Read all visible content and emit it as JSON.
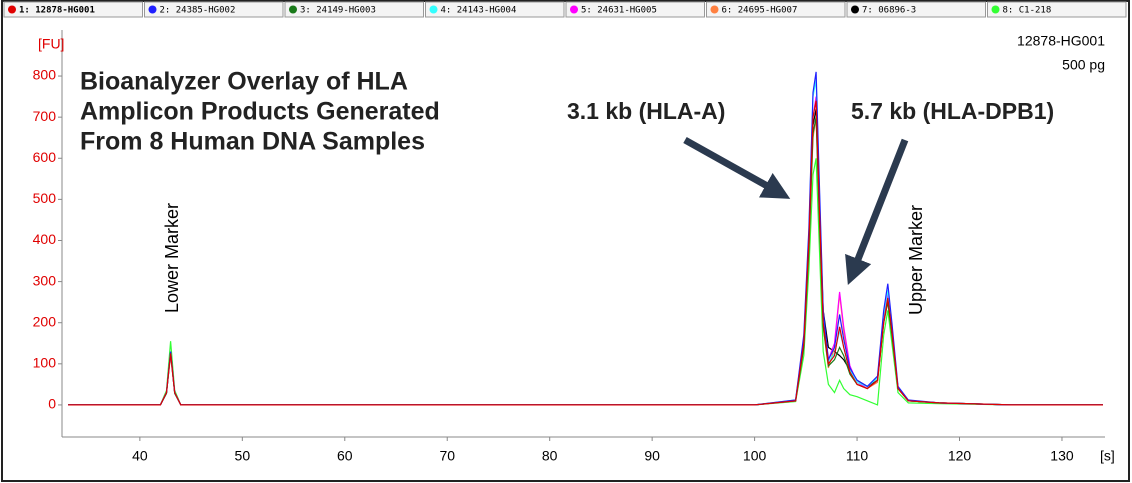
{
  "chart_data": {
    "type": "line",
    "title": [
      "Bioanalyzer Overlay of HLA",
      "Amplicon Products Generated",
      "From 8 Human DNA Samples"
    ],
    "sample_name": "12878-HG001",
    "sample_amount": "500 pg",
    "y_unit": "[FU]",
    "x_unit": "[s]",
    "annotations": [
      "3.1 kb (HLA-A)",
      "5.7 kb (HLA-DPB1)",
      "Lower Marker",
      "Upper Marker"
    ],
    "xlim": [
      32.4,
      134.2
    ],
    "ylim": [
      -78,
      912
    ],
    "xticks": [
      40,
      50,
      60,
      70,
      80,
      90,
      100,
      110,
      120,
      130
    ],
    "yticks": [
      0,
      100,
      200,
      300,
      400,
      500,
      600,
      700,
      800
    ],
    "x": [
      33,
      42,
      42.6,
      43,
      43.4,
      44,
      60,
      80,
      100,
      104,
      104.8,
      105.3,
      105.7,
      106,
      106.3,
      106.7,
      107.2,
      107.8,
      108.3,
      108.7,
      109.3,
      110,
      111,
      112,
      112.6,
      113,
      113.4,
      114,
      115,
      118,
      125,
      134
    ],
    "series": [
      {
        "name": "1: 12878-HG001",
        "color": "#e00000",
        "values": [
          0,
          0,
          30,
          125,
          30,
          0,
          0,
          0,
          0,
          10,
          150,
          400,
          700,
          740,
          500,
          200,
          100,
          120,
          190,
          140,
          80,
          50,
          40,
          60,
          200,
          260,
          180,
          40,
          10,
          5,
          0,
          0
        ]
      },
      {
        "name": "2: 24385-HG002",
        "color": "#1f1fff",
        "values": [
          0,
          0,
          30,
          130,
          30,
          0,
          0,
          0,
          0,
          12,
          170,
          430,
          760,
          810,
          560,
          230,
          110,
          140,
          220,
          160,
          90,
          60,
          45,
          70,
          230,
          295,
          200,
          45,
          12,
          5,
          0,
          0
        ]
      },
      {
        "name": "3: 24149-HG003",
        "color": "#1a7a1a",
        "values": [
          0,
          0,
          28,
          130,
          28,
          0,
          0,
          0,
          0,
          10,
          140,
          380,
          660,
          700,
          470,
          190,
          95,
          110,
          140,
          120,
          75,
          50,
          40,
          60,
          200,
          250,
          170,
          40,
          10,
          5,
          0,
          0
        ]
      },
      {
        "name": "4: 24143-HG004",
        "color": "#33ffff",
        "values": [
          0,
          0,
          30,
          125,
          30,
          0,
          0,
          0,
          0,
          12,
          160,
          420,
          750,
          790,
          540,
          220,
          105,
          125,
          180,
          140,
          85,
          55,
          45,
          65,
          220,
          280,
          190,
          42,
          10,
          5,
          0,
          0
        ]
      },
      {
        "name": "5: 24631-HG005",
        "color": "#ff00ff",
        "values": [
          0,
          0,
          30,
          125,
          30,
          0,
          0,
          0,
          0,
          10,
          150,
          400,
          700,
          750,
          510,
          210,
          110,
          150,
          275,
          190,
          95,
          55,
          40,
          60,
          210,
          270,
          180,
          40,
          10,
          5,
          0,
          0
        ]
      },
      {
        "name": "6: 24695-HG007",
        "color": "#ff8040",
        "values": [
          0,
          0,
          30,
          120,
          30,
          0,
          0,
          0,
          0,
          10,
          140,
          380,
          650,
          700,
          480,
          190,
          90,
          140,
          270,
          180,
          80,
          50,
          40,
          55,
          200,
          255,
          175,
          40,
          10,
          5,
          0,
          0
        ]
      },
      {
        "name": "7: 06896-3",
        "color": "#000000",
        "values": [
          0,
          0,
          30,
          125,
          30,
          0,
          0,
          0,
          0,
          10,
          150,
          390,
          680,
          720,
          500,
          230,
          140,
          130,
          120,
          110,
          85,
          60,
          45,
          60,
          210,
          265,
          180,
          40,
          10,
          5,
          0,
          0
        ]
      },
      {
        "name": "8: C1-218",
        "color": "#33ff33",
        "values": [
          0,
          0,
          35,
          155,
          35,
          0,
          0,
          0,
          0,
          8,
          120,
          330,
          560,
          600,
          400,
          130,
          50,
          30,
          60,
          40,
          25,
          20,
          10,
          0,
          170,
          230,
          150,
          30,
          5,
          3,
          0,
          0
        ]
      }
    ]
  }
}
